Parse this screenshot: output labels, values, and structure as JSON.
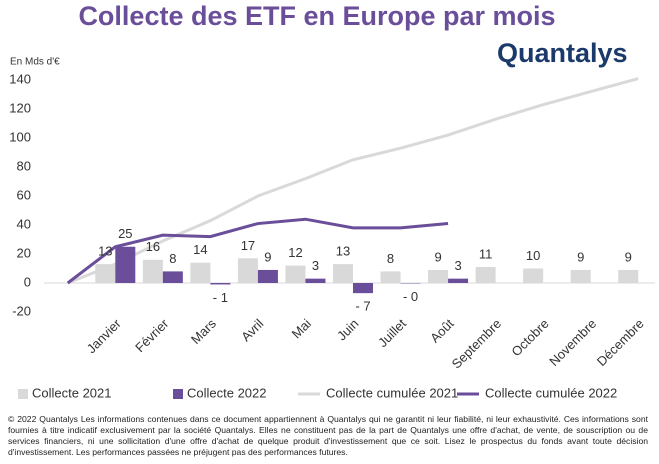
{
  "chart_data": {
    "type": "bar",
    "title": "Collecte des ETF en Europe par mois",
    "logo": "Quantalys",
    "y_label": "En Mds d'€",
    "categories": [
      null,
      "Janvier",
      "Février",
      "Mars",
      "Avril",
      "Mai",
      "Juin",
      "Juillet",
      "Août",
      "Septembre",
      "Octobre",
      "Novembre",
      "Décembre"
    ],
    "series": [
      {
        "name": "Collecte 2021",
        "type": "bar",
        "color": "#d9d9d9",
        "values": [
          null,
          13,
          16,
          14,
          17,
          12,
          13,
          8,
          9,
          11,
          10,
          9,
          9
        ]
      },
      {
        "name": "Collecte 2022",
        "type": "bar",
        "color": "#6a4e9a",
        "values": [
          null,
          25,
          8,
          -1,
          9,
          3,
          -7,
          -0.3,
          3,
          null,
          null,
          null,
          null
        ],
        "value_labels": [
          null,
          "25",
          "8",
          "- 1",
          "9",
          "3",
          "- 7",
          "- 0",
          "3",
          null,
          null,
          null,
          null
        ]
      },
      {
        "name": "Collecte cumulée 2021",
        "type": "line",
        "color": "#d9d9d9",
        "values": [
          0,
          13,
          29,
          43,
          60,
          72,
          85,
          93,
          102,
          113,
          123,
          132,
          141
        ]
      },
      {
        "name": "Collecte cumulée 2022",
        "type": "line",
        "color": "#6a4e9a",
        "values": [
          0,
          25,
          33,
          32,
          41,
          44,
          38,
          38,
          41,
          null,
          null,
          null,
          null
        ]
      }
    ],
    "ylim": [
      -20,
      140
    ],
    "yticks": [
      -20,
      0,
      20,
      40,
      60,
      80,
      100,
      120,
      140
    ],
    "grid": false,
    "legend": "bottom",
    "footer": "© 2022 Quantalys Les informations contenues dans ce document appartiennent à Quantalys qui ne garantit ni leur fiabilité, ni leur exhaustivité. Ces informations sont fournies à titre indicatif exclusivement par la société Quantalys. Elles ne constituent pas de la part de Quantalys une offre d'achat, de vente, de souscription ou de services financiers, ni une sollicitation d'une offre d'achat de quelque produit d'investissement que ce soit. Lisez le prospectus du fonds avant toute décision d'investissement. Les performances passées ne préjugent pas des performances futures."
  }
}
